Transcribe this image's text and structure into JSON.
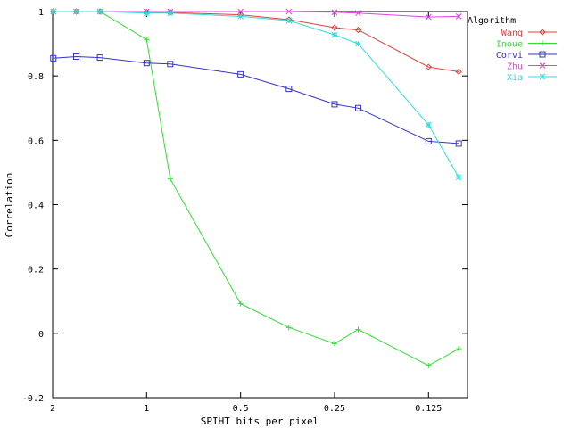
{
  "chart_data": {
    "type": "line",
    "xlabel": "SPIHT bits per pixel",
    "ylabel": "Correlation",
    "x_scale": "log2-reversed",
    "xlim": [
      2,
      0.09375
    ],
    "ylim": [
      -0.2,
      1
    ],
    "x_ticks": [
      {
        "value": 2,
        "label": "2"
      },
      {
        "value": 1,
        "label": "1"
      },
      {
        "value": 0.5,
        "label": "0.5"
      },
      {
        "value": 0.25,
        "label": "0.25"
      },
      {
        "value": 0.125,
        "label": "0.125"
      }
    ],
    "y_ticks": [
      {
        "value": 1,
        "label": "1"
      },
      {
        "value": 0.8,
        "label": "0.8"
      },
      {
        "value": 0.6,
        "label": "0.6"
      },
      {
        "value": 0.4,
        "label": "0.4"
      },
      {
        "value": 0.2,
        "label": "0.2"
      },
      {
        "value": 0,
        "label": "0"
      },
      {
        "value": -0.2,
        "label": "-0.2"
      }
    ],
    "grid": false,
    "legend": {
      "title": "Algorithm",
      "placement": "top-right-outside"
    },
    "x": [
      1.99,
      1.68,
      1.41,
      1.0,
      0.84,
      0.5,
      0.35,
      0.25,
      0.21,
      0.125,
      0.1
    ],
    "series": [
      {
        "name": "Wang",
        "color": "#e0413c",
        "marker": "diamond",
        "values": [
          1.0,
          1.0,
          1.0,
          0.998,
          0.997,
          0.99,
          0.975,
          0.95,
          0.943,
          0.828,
          0.813
        ]
      },
      {
        "name": "Inoue",
        "color": "#33dd33",
        "marker": "plus",
        "values": [
          1.0,
          1.0,
          1.0,
          0.913,
          0.48,
          0.092,
          0.018,
          -0.032,
          0.012,
          -0.1,
          -0.048
        ]
      },
      {
        "name": "Corvi",
        "color": "#3333cc",
        "marker": "square",
        "values": [
          0.855,
          0.86,
          0.857,
          0.84,
          0.837,
          0.805,
          0.76,
          0.712,
          0.7,
          0.597,
          0.59
        ]
      },
      {
        "name": "Zhu",
        "color": "#e040e0",
        "marker": "cross",
        "values": [
          1.0,
          1.0,
          1.0,
          1.0,
          1.0,
          1.0,
          1.0,
          0.998,
          0.995,
          0.983,
          0.985
        ]
      },
      {
        "name": "Xia",
        "color": "#30dede",
        "marker": "star",
        "values": [
          1.0,
          1.0,
          1.0,
          0.995,
          0.995,
          0.985,
          0.972,
          0.928,
          0.9,
          0.648,
          0.485
        ]
      }
    ]
  }
}
